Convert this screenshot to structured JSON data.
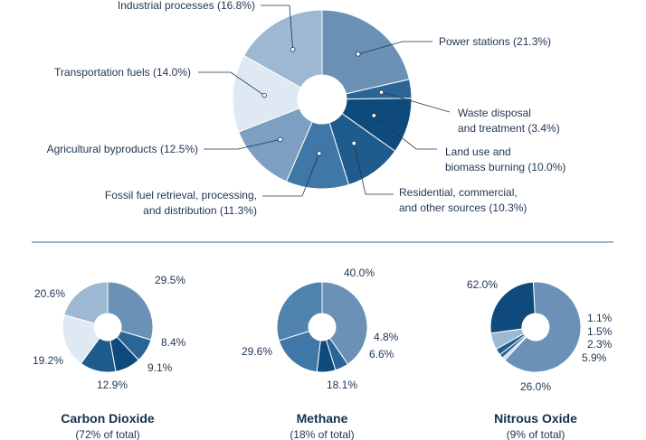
{
  "chart_data": [
    {
      "type": "pie",
      "title": "",
      "start_angle_deg": 270,
      "slices": [
        {
          "label": "Power stations (21.3%)",
          "value": 21.3,
          "color": "#6b91b6"
        },
        {
          "label": "Waste disposal and treatment (3.4%)",
          "value": 3.4,
          "color": "#2a6596"
        },
        {
          "label": "Land use and biomass burning (10.0%)",
          "value": 10.0,
          "color": "#0f4a7c"
        },
        {
          "label": "Residential, commercial, and other sources (10.3%)",
          "value": 10.3,
          "color": "#1f5b8c"
        },
        {
          "label": "Fossil fuel retrieval, processing, and distribution (11.3%)",
          "value": 11.3,
          "color": "#3f77a6"
        },
        {
          "label": "Agricultural byproducts (12.5%)",
          "value": 12.5,
          "color": "#7d9fc1"
        },
        {
          "label": "Transportation fuels (14.0%)",
          "value": 14.0,
          "color": "#dfe9f3"
        },
        {
          "label": "Industrial processes (16.8%)",
          "value": 16.8,
          "color": "#9db8d2"
        }
      ],
      "callouts": [
        {
          "lines": [
            "Industrial processes (16.8%)"
          ]
        },
        {
          "lines": [
            "Power stations (21.3%)"
          ]
        },
        {
          "lines": [
            "Transportation fuels (14.0%)"
          ]
        },
        {
          "lines": [
            "Waste disposal",
            "and treatment (3.4%)"
          ]
        },
        {
          "lines": [
            "Land use and",
            "biomass burning (10.0%)"
          ]
        },
        {
          "lines": [
            "Agricultural byproducts (12.5%)"
          ]
        },
        {
          "lines": [
            "Residential, commercial,",
            "and other sources (10.3%)"
          ]
        },
        {
          "lines": [
            "Fossil fuel retrieval, processing,",
            "and distribution (11.3%)"
          ]
        }
      ]
    },
    {
      "type": "pie",
      "title": "Carbon Dioxide",
      "subtitle": "(72% of total)",
      "start_angle_deg": 270,
      "slices": [
        {
          "label": "29.5%",
          "value": 29.5,
          "color": "#6b91b6"
        },
        {
          "label": "8.4%",
          "value": 8.4,
          "color": "#2a6596"
        },
        {
          "label": "9.1%",
          "value": 9.1,
          "color": "#0f4a7c"
        },
        {
          "label": "12.9%",
          "value": 12.9,
          "color": "#1f5b8c"
        },
        {
          "label": "19.2%",
          "value": 19.2,
          "color": "#dfe9f3"
        },
        {
          "label": "20.6%",
          "value": 20.6,
          "color": "#9db8d2"
        }
      ]
    },
    {
      "type": "pie",
      "title": "Methane",
      "subtitle": "(18% of total)",
      "start_angle_deg": 270,
      "slices": [
        {
          "label": "40.0%",
          "value": 40.0,
          "color": "#6b91b6"
        },
        {
          "label": "4.8%",
          "value": 4.8,
          "color": "#2a6596"
        },
        {
          "label": "6.6%",
          "value": 6.6,
          "color": "#0f4a7c"
        },
        {
          "label": "18.1%",
          "value": 18.1,
          "color": "#3f77a6"
        },
        {
          "label": "29.6%",
          "value": 29.6,
          "color": "#4f82ad"
        }
      ]
    },
    {
      "type": "pie",
      "title": "Nitrous Oxide",
      "subtitle": "(9% of total)",
      "start_angle_deg": 267,
      "slices": [
        {
          "label": "62.0%",
          "value": 62.0,
          "color": "#6b91b6"
        },
        {
          "label": "1.1%",
          "value": 1.1,
          "color": "#c9d8e8"
        },
        {
          "label": "1.5%",
          "value": 1.5,
          "color": "#2a6596"
        },
        {
          "label": "2.3%",
          "value": 2.3,
          "color": "#1f5b8c"
        },
        {
          "label": "5.9%",
          "value": 5.9,
          "color": "#9db8d2"
        },
        {
          "label": "26.0%",
          "value": 26.0,
          "color": "#0f4a7c"
        }
      ]
    }
  ]
}
